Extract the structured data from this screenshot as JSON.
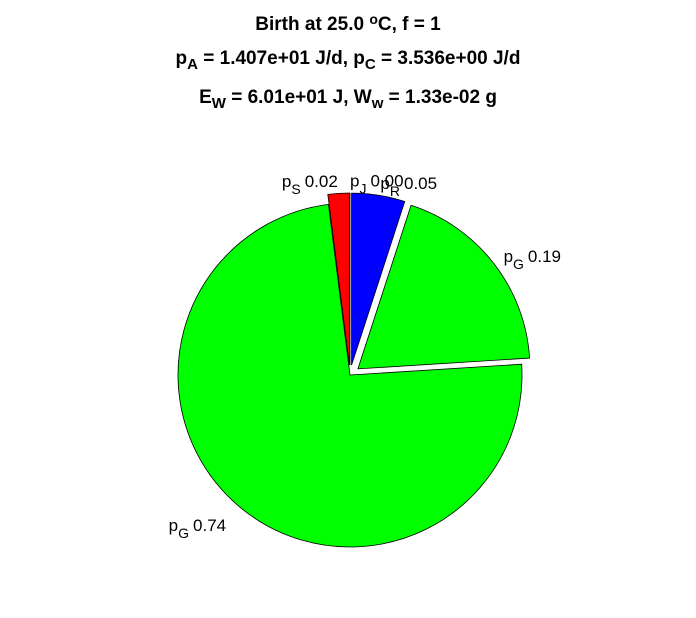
{
  "chart_data": {
    "type": "pie",
    "title": [
      [
        {
          "t": "Birth at 25.0 "
        },
        {
          "t": "o",
          "sup": true
        },
        {
          "t": "C, f = 1"
        }
      ],
      [
        {
          "t": "p"
        },
        {
          "t": "A",
          "sub": true
        },
        {
          "t": " = 1.407e+01 J/d, p"
        },
        {
          "t": "C",
          "sub": true
        },
        {
          "t": " = 3.536e+00 J/d"
        }
      ],
      [
        {
          "t": "E"
        },
        {
          "t": "W",
          "sub": true
        },
        {
          "t": " = 6.01e+01 J, W"
        },
        {
          "t": "w",
          "sub": true
        },
        {
          "t": " = 1.33e-02 g"
        }
      ]
    ],
    "labels": [
      {
        "base": "p",
        "sub": "J"
      },
      {
        "base": "p",
        "sub": "R"
      },
      {
        "base": "p",
        "sub": "G"
      },
      {
        "base": "p",
        "sub": "G"
      },
      {
        "base": "p",
        "sub": "S"
      }
    ],
    "values": [
      0.0,
      0.05,
      0.19,
      0.74,
      0.02
    ],
    "value_labels": [
      "0.00",
      "0.05",
      "0.19",
      "0.74",
      "0.02"
    ],
    "colors": [
      null,
      "#0000ff",
      "#00ff00",
      "#00ff00",
      "#ff0000"
    ],
    "explode": [
      true,
      true,
      true,
      false,
      true
    ]
  }
}
